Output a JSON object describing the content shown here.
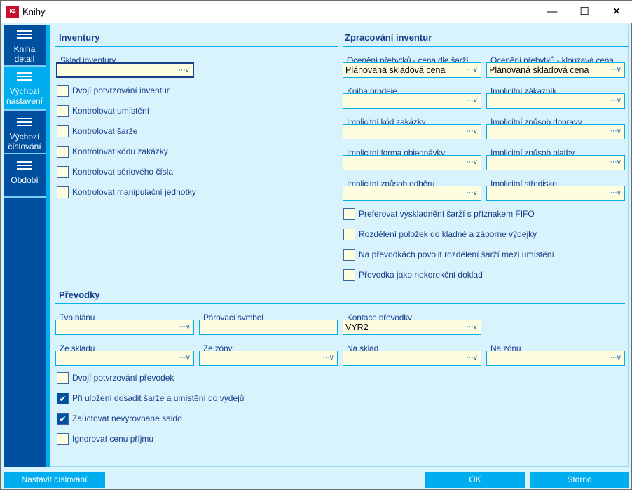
{
  "window": {
    "title": "Knihy",
    "logo": "K2",
    "minimize": "minimize-icon",
    "maximize": "maximize-icon",
    "close": "close-icon"
  },
  "sidebar": {
    "items": [
      {
        "label": "Kniha detail",
        "icon": "list-icon",
        "selected": false
      },
      {
        "label": "Výchozí nastavení",
        "icon": "list-icon",
        "selected": true
      },
      {
        "label": "Výchozí číslování",
        "icon": "lines-icon",
        "selected": false
      },
      {
        "label": "Období",
        "icon": "lines-icon",
        "selected": false
      }
    ]
  },
  "inventury": {
    "heading": "Inventury",
    "sklad_label": "Sklad inventury",
    "sklad_value": "",
    "checks": [
      {
        "label": "Dvojí potvrzování inventur",
        "checked": false
      },
      {
        "label": "Kontrolovat umístění",
        "checked": false
      },
      {
        "label": "Kontrolovat šarže",
        "checked": false
      },
      {
        "label": "Kontrolovat kódu zakázky",
        "checked": false
      },
      {
        "label": "Kontrolovat sériového čísla",
        "checked": false
      },
      {
        "label": "Kontrolovat manipulační jednotky",
        "checked": false
      }
    ]
  },
  "zpracovani": {
    "heading": "Zpracování inventur",
    "fields": [
      {
        "label": "Ocenění přebytků - cena dle šarží",
        "value": "Plánovaná skladová cena"
      },
      {
        "label": "Ocenění přebytků - klouzavá cena",
        "value": "Plánovaná skladová cena"
      },
      {
        "label": "Kniha prodeje",
        "value": ""
      },
      {
        "label": "Implicitní zákazník",
        "value": ""
      },
      {
        "label": "Implicitní kód zakázky",
        "value": ""
      },
      {
        "label": "Implicitní způsob dopravy",
        "value": ""
      },
      {
        "label": "Implicitní forma objednávky",
        "value": ""
      },
      {
        "label": "Implicitní způsob platby",
        "value": ""
      },
      {
        "label": "Implicitní způsob odběru",
        "value": ""
      },
      {
        "label": "Implicitní středisko",
        "value": ""
      }
    ],
    "checks": [
      {
        "label": "Preferovat vyskladnění šarží s příznakem FIFO",
        "checked": false
      },
      {
        "label": "Rozdělení položek do kladné a záporné výdejky",
        "checked": false
      },
      {
        "label": "Na převodkách povolit rozdělení šarží mezi umístění",
        "checked": false
      },
      {
        "label": "Převodka jako nekorekční doklad",
        "checked": false
      }
    ]
  },
  "prevodky": {
    "heading": "Převodky",
    "fields": [
      {
        "label": "Typ plánu",
        "value": ""
      },
      {
        "label": "Párovací symbol",
        "value": ""
      },
      {
        "label": "Kontace převodky",
        "value": "VYR2"
      },
      {
        "label": "Ze skladu",
        "value": ""
      },
      {
        "label": "Ze zóny",
        "value": ""
      },
      {
        "label": "Na sklad",
        "value": ""
      },
      {
        "label": "Na zónu",
        "value": ""
      }
    ],
    "checks": [
      {
        "label": "Dvojí potvrzování převodek",
        "checked": false
      },
      {
        "label": "Při uložení dosadit šarže a umístění do výdejů",
        "checked": true
      },
      {
        "label": "Zaúčtovat nevyrovnané saldo",
        "checked": true
      },
      {
        "label": "Ignorovat cenu příjmu",
        "checked": false
      }
    ]
  },
  "footer": {
    "numbering": "Nastavit číslování",
    "ok": "OK",
    "cancel": "Storno"
  },
  "colors": {
    "accent": "#00aeef",
    "sidebar": "#0050a0",
    "field": "#fffde0",
    "panel": "#d9f3fd"
  }
}
